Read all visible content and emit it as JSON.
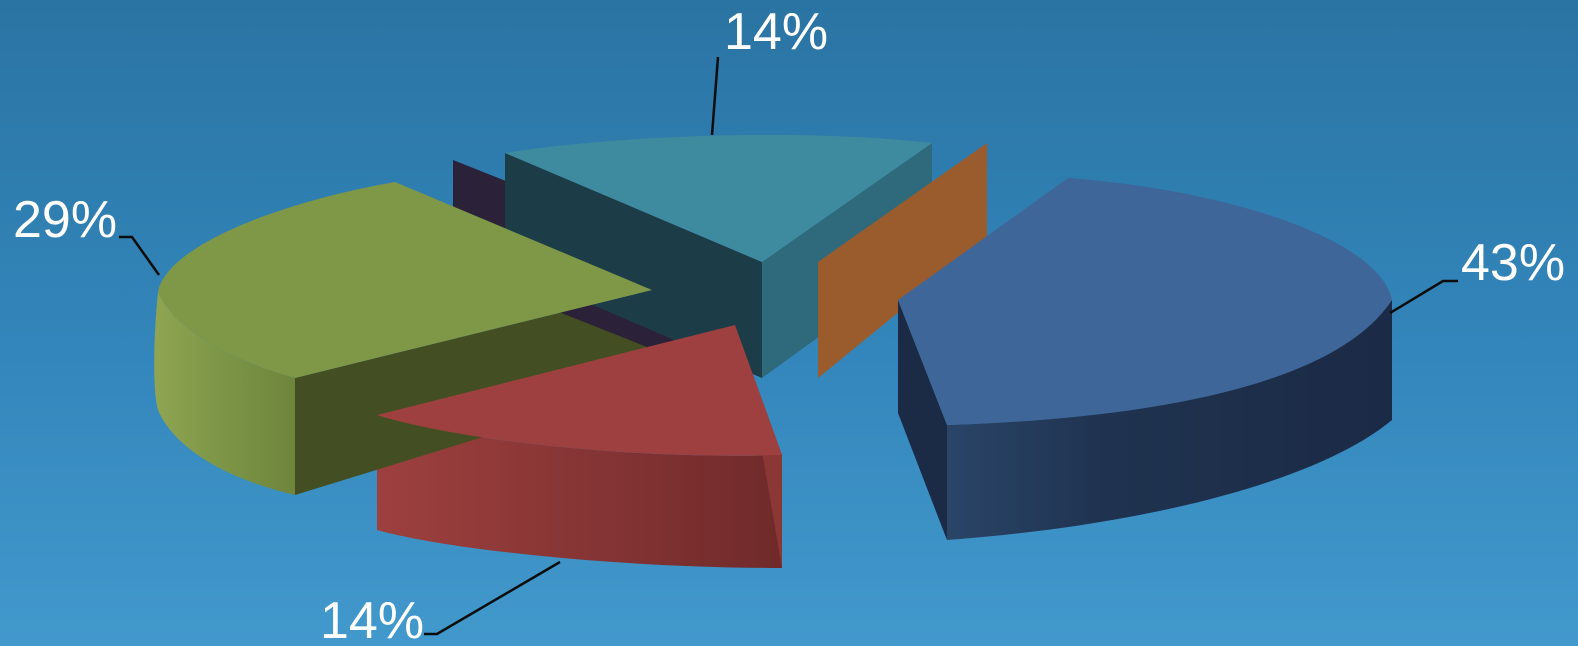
{
  "chart_data": {
    "type": "pie",
    "variant": "3d-exploded",
    "title": "",
    "slices": [
      {
        "label": "43%",
        "value": 43,
        "color": "#3e6699"
      },
      {
        "label": "",
        "value": 0,
        "color": "#9a5c2c"
      },
      {
        "label": "14%",
        "value": 14,
        "color": "#3e8a9e"
      },
      {
        "label": "",
        "value": 0,
        "color": "#2b2138"
      },
      {
        "label": "29%",
        "value": 29,
        "color": "#7f9848"
      },
      {
        "label": "14%",
        "value": 14,
        "color": "#9e403f"
      }
    ],
    "legend": "none",
    "background_color": "#3386bb",
    "label_color": "#ffffff"
  }
}
